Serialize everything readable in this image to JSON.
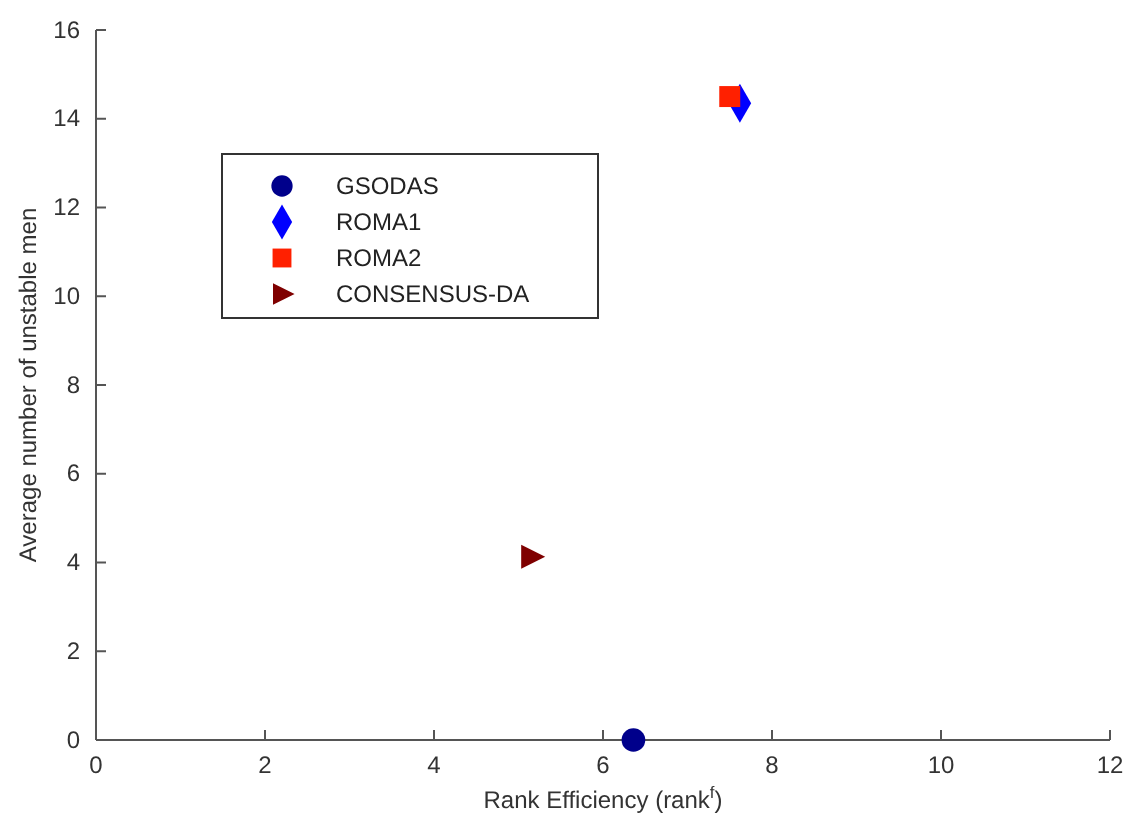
{
  "chart_data": {
    "type": "scatter",
    "xlabel": "Rank Efficiency (rank$^{f}$)",
    "ylabel": "Average number of unstable men",
    "xlim": [
      0,
      12
    ],
    "xticks": [
      0,
      2,
      4,
      6,
      8,
      10,
      12
    ],
    "ylim": [
      0,
      16
    ],
    "yticks": [
      0,
      2,
      4,
      6,
      8,
      10,
      12,
      14,
      16
    ],
    "grid": false,
    "legend": "top left",
    "series": [
      {
        "name": "GSODAS",
        "color": "#00008b",
        "marker": "circle",
        "x": [
          6.36
        ],
        "values": [
          0
        ]
      },
      {
        "name": "ROMA1",
        "color": "#0000ff",
        "marker": "diamond",
        "x": [
          7.62
        ],
        "values": [
          14.35
        ]
      },
      {
        "name": "ROMA2",
        "color": "#ff2000",
        "marker": "square",
        "x": [
          7.5
        ],
        "values": [
          14.5
        ]
      },
      {
        "name": "CONSENSUS-DA",
        "color": "#7f0000",
        "marker": "triangle",
        "x": [
          5.15
        ],
        "values": [
          4.13
        ]
      }
    ]
  }
}
